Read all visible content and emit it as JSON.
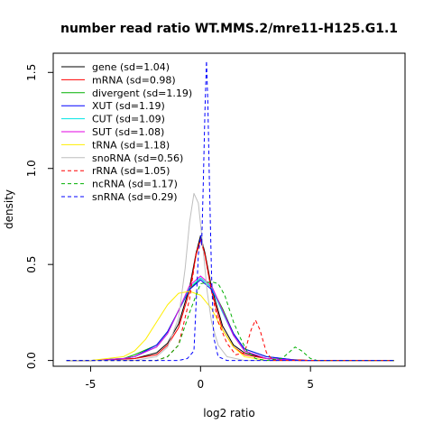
{
  "chart_data": {
    "type": "line",
    "title": "number read ratio WT.MMS.2/mre11-H125.G1.1",
    "xlabel": "log2 ratio",
    "ylabel": "density",
    "xlim": [
      -6.7,
      9.3
    ],
    "ylim": [
      -0.03,
      1.6
    ],
    "x_ticks": [
      -5,
      0,
      5
    ],
    "y_ticks": [
      0.0,
      0.5,
      1.0,
      1.5
    ],
    "x_tick_labels": [
      "-5",
      "0",
      "5"
    ],
    "y_tick_labels": [
      "0.0",
      "0.5",
      "1.0",
      "1.5"
    ],
    "grid": false,
    "legend_position": "top-left",
    "series": [
      {
        "name": "gene (sd=1.04)",
        "color": "#000000",
        "dash": "solid",
        "points": [
          [
            -5,
            0
          ],
          [
            -3,
            0.01
          ],
          [
            -2,
            0.04
          ],
          [
            -1.5,
            0.09
          ],
          [
            -1,
            0.19
          ],
          [
            -0.5,
            0.38
          ],
          [
            -0.2,
            0.56
          ],
          [
            0,
            0.65
          ],
          [
            0.2,
            0.56
          ],
          [
            0.5,
            0.38
          ],
          [
            1,
            0.18
          ],
          [
            1.5,
            0.08
          ],
          [
            2,
            0.04
          ],
          [
            3,
            0.01
          ],
          [
            5,
            0
          ]
        ]
      },
      {
        "name": "mRNA (sd=0.98)",
        "color": "#ff0000",
        "dash": "solid",
        "points": [
          [
            -5,
            0
          ],
          [
            -3,
            0.01
          ],
          [
            -2,
            0.03
          ],
          [
            -1.5,
            0.08
          ],
          [
            -1,
            0.17
          ],
          [
            -0.5,
            0.36
          ],
          [
            -0.2,
            0.55
          ],
          [
            0,
            0.63
          ],
          [
            0.2,
            0.55
          ],
          [
            0.5,
            0.36
          ],
          [
            1,
            0.16
          ],
          [
            1.5,
            0.07
          ],
          [
            2,
            0.03
          ],
          [
            3,
            0.01
          ],
          [
            5,
            0
          ]
        ]
      },
      {
        "name": "divergent (sd=1.19)",
        "color": "#00b000",
        "dash": "solid",
        "points": [
          [
            -5,
            0
          ],
          [
            -3.5,
            0.01
          ],
          [
            -3,
            0.03
          ],
          [
            -2,
            0.08
          ],
          [
            -1.5,
            0.15
          ],
          [
            -1,
            0.26
          ],
          [
            -0.5,
            0.37
          ],
          [
            0,
            0.43
          ],
          [
            0.5,
            0.38
          ],
          [
            1,
            0.27
          ],
          [
            1.5,
            0.14
          ],
          [
            2,
            0.06
          ],
          [
            3,
            0.02
          ],
          [
            4.5,
            0
          ]
        ]
      },
      {
        "name": "XUT (sd=1.19)",
        "color": "#0000ff",
        "dash": "solid",
        "points": [
          [
            -5,
            0
          ],
          [
            -3.5,
            0.01
          ],
          [
            -3,
            0.02
          ],
          [
            -2,
            0.08
          ],
          [
            -1.5,
            0.15
          ],
          [
            -1,
            0.26
          ],
          [
            -0.5,
            0.37
          ],
          [
            0,
            0.42
          ],
          [
            0.5,
            0.37
          ],
          [
            1,
            0.26
          ],
          [
            1.5,
            0.14
          ],
          [
            2,
            0.06
          ],
          [
            3,
            0.02
          ],
          [
            4.5,
            0
          ]
        ]
      },
      {
        "name": "CUT (sd=1.09)",
        "color": "#00e5e5",
        "dash": "solid",
        "points": [
          [
            -5,
            0
          ],
          [
            -3.5,
            0.01
          ],
          [
            -3,
            0.02
          ],
          [
            -2,
            0.07
          ],
          [
            -1.5,
            0.14
          ],
          [
            -1,
            0.26
          ],
          [
            -0.5,
            0.38
          ],
          [
            0,
            0.43
          ],
          [
            0.5,
            0.38
          ],
          [
            1,
            0.25
          ],
          [
            1.5,
            0.13
          ],
          [
            2,
            0.05
          ],
          [
            3,
            0.01
          ],
          [
            4.5,
            0
          ]
        ]
      },
      {
        "name": "SUT (sd=1.08)",
        "color": "#e000e0",
        "dash": "solid",
        "points": [
          [
            -5,
            0
          ],
          [
            -3.5,
            0.01
          ],
          [
            -3,
            0.02
          ],
          [
            -2,
            0.07
          ],
          [
            -1.5,
            0.14
          ],
          [
            -1,
            0.26
          ],
          [
            -0.5,
            0.39
          ],
          [
            0,
            0.44
          ],
          [
            0.5,
            0.39
          ],
          [
            1,
            0.26
          ],
          [
            1.5,
            0.13
          ],
          [
            2,
            0.05
          ],
          [
            3,
            0.01
          ],
          [
            4.5,
            0
          ]
        ]
      },
      {
        "name": "tRNA (sd=1.18)",
        "color": "#ffee00",
        "dash": "solid",
        "points": [
          [
            -5,
            0
          ],
          [
            -3.5,
            0.02
          ],
          [
            -3,
            0.05
          ],
          [
            -2.5,
            0.11
          ],
          [
            -2,
            0.2
          ],
          [
            -1.5,
            0.29
          ],
          [
            -1,
            0.35
          ],
          [
            -0.5,
            0.36
          ],
          [
            0,
            0.34
          ],
          [
            0.5,
            0.27
          ],
          [
            1,
            0.16
          ],
          [
            1.5,
            0.07
          ],
          [
            2,
            0.02
          ],
          [
            3,
            0
          ],
          [
            4.5,
            0
          ]
        ]
      },
      {
        "name": "snoRNA (sd=0.56)",
        "color": "#bebebe",
        "dash": "solid",
        "points": [
          [
            -3,
            0
          ],
          [
            -2,
            0.02
          ],
          [
            -1.5,
            0.07
          ],
          [
            -1,
            0.22
          ],
          [
            -0.7,
            0.48
          ],
          [
            -0.5,
            0.72
          ],
          [
            -0.3,
            0.87
          ],
          [
            -0.1,
            0.82
          ],
          [
            0.1,
            0.6
          ],
          [
            0.3,
            0.36
          ],
          [
            0.5,
            0.2
          ],
          [
            0.8,
            0.08
          ],
          [
            1.2,
            0.02
          ],
          [
            2,
            0
          ]
        ]
      },
      {
        "name": "rRNA (sd=1.05)",
        "color": "#ff0000",
        "dash": "dashed",
        "points": [
          [
            -2,
            0
          ],
          [
            -1.5,
            0.02
          ],
          [
            -1,
            0.08
          ],
          [
            -0.5,
            0.32
          ],
          [
            -0.2,
            0.56
          ],
          [
            0,
            0.63
          ],
          [
            0.2,
            0.55
          ],
          [
            0.5,
            0.36
          ],
          [
            0.8,
            0.2
          ],
          [
            1.2,
            0.09
          ],
          [
            1.6,
            0.03
          ],
          [
            2,
            0.04
          ],
          [
            2.3,
            0.16
          ],
          [
            2.5,
            0.21
          ],
          [
            2.7,
            0.16
          ],
          [
            3,
            0.04
          ],
          [
            3.3,
            0
          ],
          [
            5,
            0
          ]
        ]
      },
      {
        "name": "ncRNA (sd=1.17)",
        "color": "#00b000",
        "dash": "dashed",
        "points": [
          [
            -2,
            0
          ],
          [
            -1.5,
            0.02
          ],
          [
            -1,
            0.08
          ],
          [
            -0.5,
            0.25
          ],
          [
            0,
            0.4
          ],
          [
            0.5,
            0.41
          ],
          [
            0.8,
            0.4
          ],
          [
            1.1,
            0.34
          ],
          [
            1.5,
            0.2
          ],
          [
            1.8,
            0.12
          ],
          [
            2.1,
            0.05
          ],
          [
            2.5,
            0.01
          ],
          [
            3,
            0
          ],
          [
            3.7,
            0.01
          ],
          [
            4.1,
            0.05
          ],
          [
            4.3,
            0.07
          ],
          [
            4.6,
            0.05
          ],
          [
            5,
            0.01
          ],
          [
            5.3,
            0
          ]
        ]
      },
      {
        "name": "snRNA (sd=0.29)",
        "color": "#0000ff",
        "dash": "dashed",
        "points": [
          [
            -1,
            0
          ],
          [
            -0.6,
            0.01
          ],
          [
            -0.3,
            0.05
          ],
          [
            -0.1,
            0.55
          ],
          [
            0,
            0.65
          ],
          [
            0.05,
            0.6
          ],
          [
            0.12,
            0.9
          ],
          [
            0.2,
            1.3
          ],
          [
            0.27,
            1.56
          ],
          [
            0.33,
            1.35
          ],
          [
            0.4,
            0.95
          ],
          [
            0.5,
            0.45
          ],
          [
            0.6,
            0.12
          ],
          [
            0.8,
            0.02
          ],
          [
            1.2,
            0
          ]
        ]
      }
    ]
  }
}
